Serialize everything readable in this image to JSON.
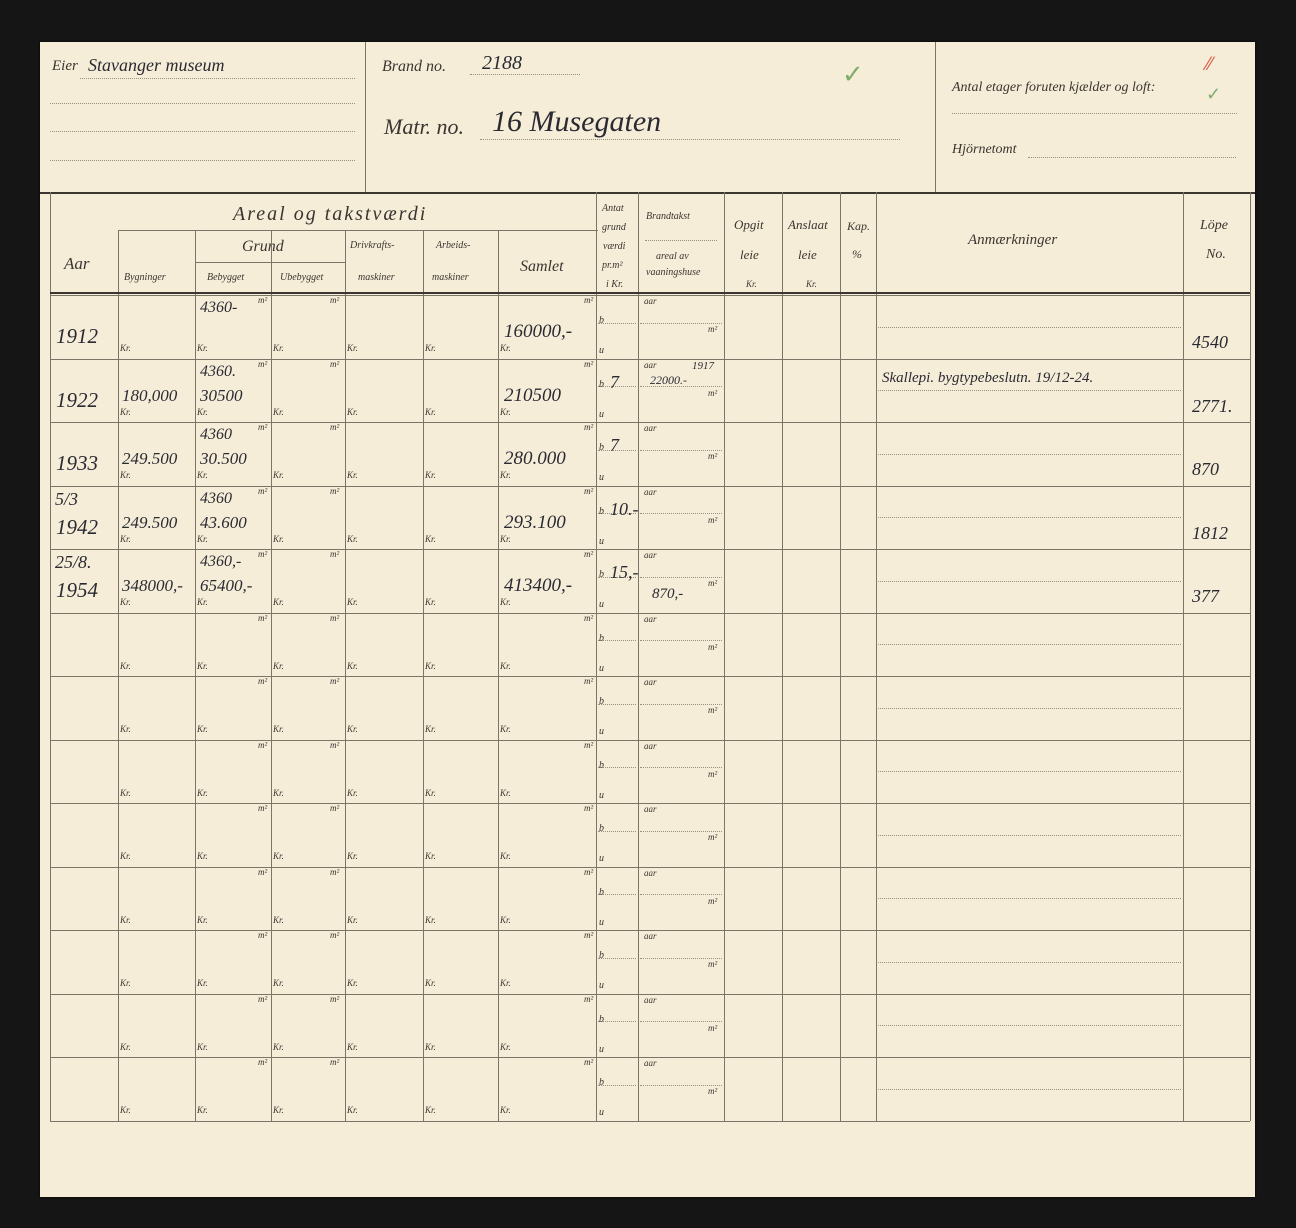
{
  "header": {
    "owner_label": "Eier",
    "owner_value": "Stavanger museum",
    "brand_label": "Brand no.",
    "brand_value": "2188",
    "matr_label": "Matr. no.",
    "matr_value": "16 Musegaten",
    "floors_label": "Antal etager foruten kjælder og loft:",
    "corner_label": "Hjörnetomt",
    "check_colors": {
      "green": "#7fae6a",
      "red": "#d8604a"
    }
  },
  "columns": {
    "aar": "Aar",
    "areal": "Areal og takstværdi",
    "bygninger": "Bygninger",
    "grund": "Grund",
    "bebygget": "Bebygget",
    "ubebygget": "Ubebygget",
    "drivkraft": "Drivkrafts-",
    "drivkraft2": "maskiner",
    "arbeids": "Arbeids-",
    "arbeids2": "maskiner",
    "samlet": "Samlet",
    "antat1": "Antat",
    "antat2": "grund",
    "antat3": "værdi",
    "antat4": "pr.m²",
    "antat5": "i Kr.",
    "brandtakst": "Brandtakst",
    "brandtakst2": "areal av",
    "brandtakst3": "vaaningshuse",
    "opgit": "Opgit",
    "opgit2": "leie",
    "opgit3": "Kr.",
    "anslaat": "Anslaat",
    "anslaat2": "leie",
    "anslaat3": "Kr.",
    "kap": "Kap.",
    "kap2": "%",
    "anm": "Anmærkninger",
    "lope": "Löpe",
    "lope2": "No."
  },
  "form_labels": {
    "kr": "Kr.",
    "m2": "m²",
    "b": "b",
    "u": "u",
    "aar": "aar"
  },
  "rows": [
    {
      "date": "",
      "year": "1912",
      "bygninger": "",
      "bebygget_m2": "4360-",
      "bebygget_kr": "",
      "samlet": "160000,-",
      "antat_b": "",
      "brand_aar": "",
      "brand_value": "",
      "brand_m2": "",
      "remark": "",
      "lope": "4540"
    },
    {
      "date": "",
      "year": "1922",
      "bygninger": "180,000",
      "bebygget_m2": "4360.",
      "bebygget_kr": "30500",
      "samlet": "210500",
      "antat_b": "7",
      "brand_aar": "1917",
      "brand_value": "22000.-",
      "brand_m2": "",
      "remark": "Skallepi. bygtypebeslutn. 19/12-24.",
      "lope": "2771."
    },
    {
      "date": "",
      "year": "1933",
      "bygninger": "249.500",
      "bebygget_m2": "4360",
      "bebygget_kr": "30.500",
      "samlet": "280.000",
      "antat_b": "7",
      "brand_aar": "",
      "brand_value": "",
      "brand_m2": "",
      "remark": "",
      "lope": "870"
    },
    {
      "date": "5/3",
      "year": "1942",
      "bygninger": "249.500",
      "bebygget_m2": "4360",
      "bebygget_kr": "43.600",
      "samlet": "293.100",
      "antat_b": "10.-",
      "brand_aar": "",
      "brand_value": "",
      "brand_m2": "",
      "remark": "",
      "lope": "1812"
    },
    {
      "date": "25/8.",
      "year": "1954",
      "bygninger": "348000,-",
      "bebygget_m2": "4360,-",
      "bebygget_kr": "65400,-",
      "samlet": "413400,-",
      "antat_b": "15,-",
      "brand_aar": "",
      "brand_value": "",
      "brand_m2": "870,-",
      "remark": "",
      "lope": "377"
    },
    {},
    {},
    {},
    {},
    {},
    {},
    {},
    {}
  ]
}
